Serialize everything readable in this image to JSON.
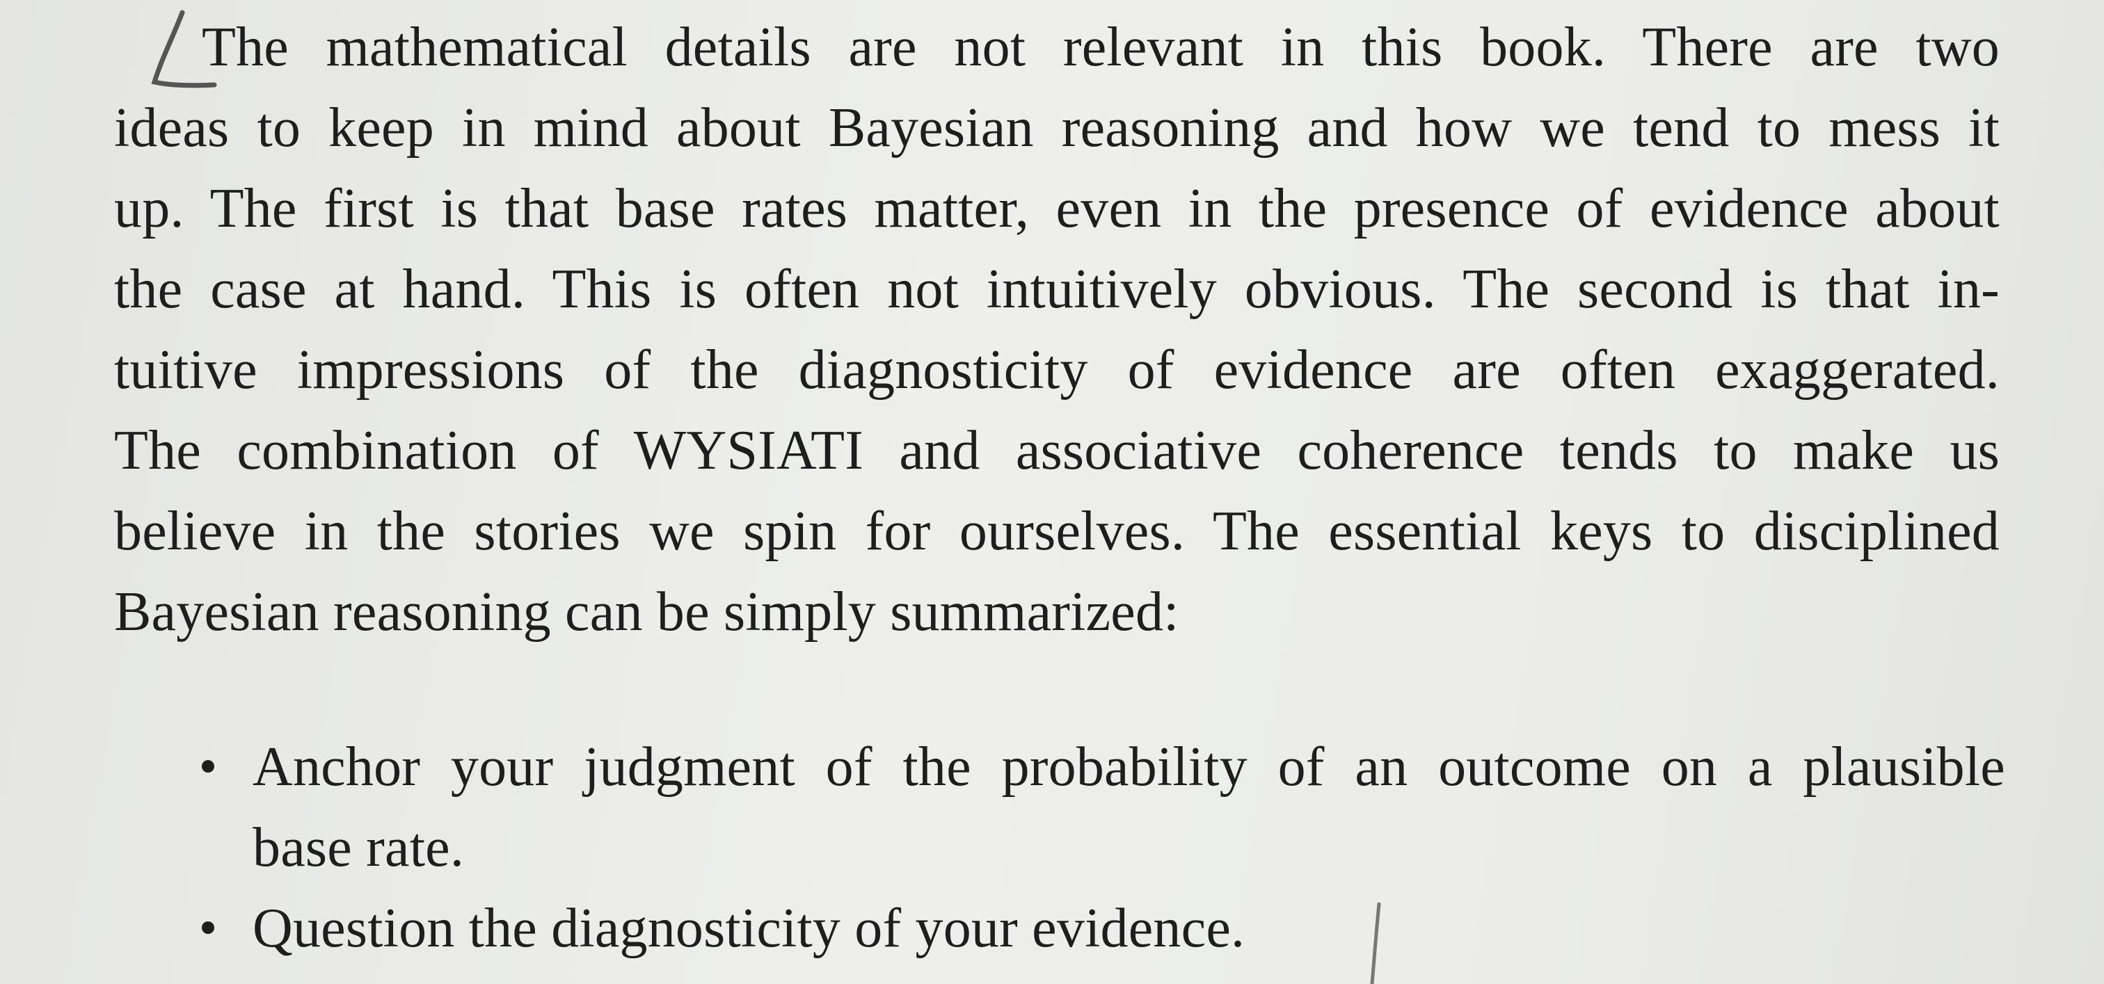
{
  "paragraph": {
    "lines": [
      "The mathematical details are not relevant in this book. There are two",
      "ideas to keep in mind about Bayesian reasoning and how we tend to mess it",
      "up. The first is that base rates matter, even in the presence of evidence about",
      "the case at hand. This is often not intuitively obvious. The second is that in-",
      "tuitive impressions of the diagnosticity of evidence are often exaggerated.",
      "The combination of WYSIATI and associative coherence tends to make us",
      "believe in the stories we spin for ourselves. The essential keys to disciplined",
      "Bayesian reasoning can be simply summarized:"
    ]
  },
  "bullets": [
    {
      "lines": [
        "Anchor your judgment of the probability of an outcome on a plausible",
        "base rate."
      ]
    },
    {
      "lines": [
        "Question the diagnosticity of your evidence."
      ]
    }
  ]
}
